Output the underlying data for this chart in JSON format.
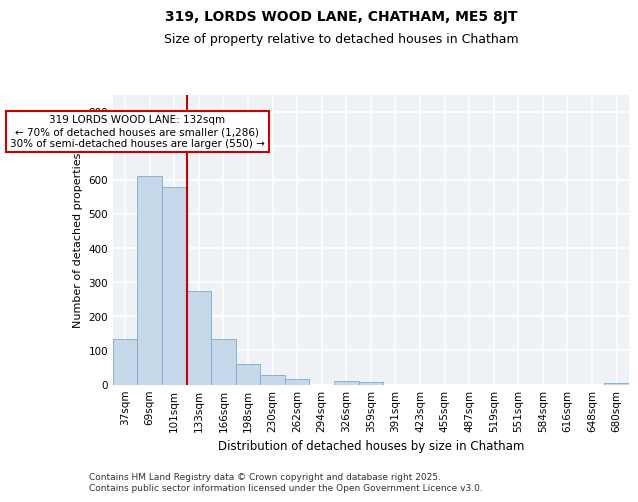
{
  "title": "319, LORDS WOOD LANE, CHATHAM, ME5 8JT",
  "subtitle": "Size of property relative to detached houses in Chatham",
  "xlabel": "Distribution of detached houses by size in Chatham",
  "ylabel": "Number of detached properties",
  "categories": [
    "37sqm",
    "69sqm",
    "101sqm",
    "133sqm",
    "166sqm",
    "198sqm",
    "230sqm",
    "262sqm",
    "294sqm",
    "326sqm",
    "359sqm",
    "391sqm",
    "423sqm",
    "455sqm",
    "487sqm",
    "519sqm",
    "551sqm",
    "584sqm",
    "616sqm",
    "648sqm",
    "680sqm"
  ],
  "values": [
    133,
    610,
    578,
    275,
    133,
    60,
    28,
    15,
    0,
    10,
    8,
    0,
    0,
    0,
    0,
    0,
    0,
    0,
    0,
    0,
    5
  ],
  "bar_color": "#c5d8ea",
  "bar_edge_color": "#7aaac8",
  "vline_x": 2.5,
  "vline_color": "#cc0000",
  "annotation_text": "319 LORDS WOOD LANE: 132sqm\n← 70% of detached houses are smaller (1,286)\n30% of semi-detached houses are larger (550) →",
  "ylim": [
    0,
    850
  ],
  "yticks": [
    0,
    100,
    200,
    300,
    400,
    500,
    600,
    700,
    800
  ],
  "bg_color": "#eef2f7",
  "fig_bg_color": "#ffffff",
  "grid_color": "#ffffff",
  "footer": "Contains HM Land Registry data © Crown copyright and database right 2025.\nContains public sector information licensed under the Open Government Licence v3.0.",
  "title_fontsize": 10,
  "subtitle_fontsize": 9,
  "xlabel_fontsize": 8.5,
  "ylabel_fontsize": 8,
  "tick_fontsize": 7.5,
  "annot_fontsize": 7.5,
  "footer_fontsize": 6.5
}
